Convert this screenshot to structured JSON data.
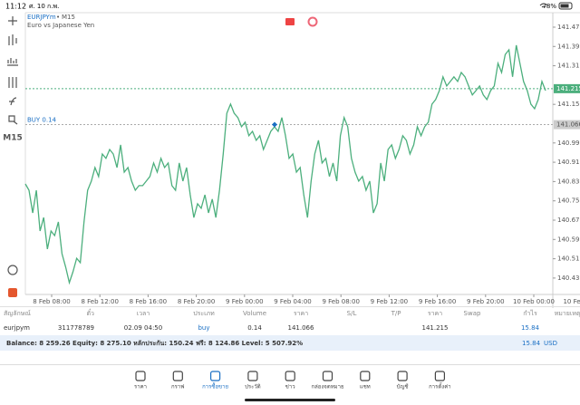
{
  "status_bar": {
    "time": "11:12",
    "date": "ศ. 10 ก.พ.",
    "battery": "78%"
  },
  "toolbar": {
    "timeframe": "M15"
  },
  "chart_data": {
    "type": "line",
    "title": "EURJPYm",
    "period": "M15",
    "subtitle": "Euro vs Japanese Yen",
    "series": [
      {
        "color": "#4caf7d",
        "values": [
          140.82,
          140.794,
          140.7,
          140.794,
          140.625,
          140.681,
          140.55,
          140.625,
          140.606,
          140.663,
          140.531,
          140.475,
          140.411,
          140.456,
          140.512,
          140.494,
          140.663,
          140.794,
          140.832,
          140.888,
          140.851,
          140.944,
          140.926,
          140.963,
          140.944,
          140.888,
          140.982,
          140.869,
          140.888,
          140.832,
          140.794,
          140.813,
          140.813,
          140.832,
          140.851,
          140.907,
          140.869,
          140.926,
          140.888,
          140.907,
          140.813,
          140.794,
          140.907,
          140.832,
          140.888,
          140.775,
          140.681,
          140.738,
          140.719,
          140.775,
          140.7,
          140.757,
          140.681,
          140.794,
          140.944,
          141.113,
          141.151,
          141.113,
          141.095,
          141.057,
          141.076,
          141.02,
          141.038,
          141.001,
          141.02,
          140.963,
          141.001,
          141.038,
          141.057,
          141.038,
          141.095,
          141.02,
          140.926,
          140.944,
          140.869,
          140.888,
          140.775,
          140.681,
          140.832,
          140.944,
          141.001,
          140.907,
          140.926,
          140.851,
          140.907,
          140.832,
          141.02,
          141.095,
          141.057,
          140.926,
          140.869,
          140.832,
          140.851,
          140.794,
          140.832,
          140.7,
          140.738,
          140.907,
          140.832,
          140.963,
          140.982,
          140.926,
          140.963,
          141.02,
          141.001,
          140.944,
          140.982,
          141.057,
          141.02,
          141.057,
          141.076,
          141.151,
          141.17,
          141.207,
          141.264,
          141.226,
          141.245,
          141.264,
          141.245,
          141.282,
          141.264,
          141.226,
          141.189,
          141.207,
          141.226,
          141.189,
          141.17,
          141.207,
          141.226,
          141.32,
          141.282,
          141.357,
          141.376,
          141.264,
          141.395,
          141.32,
          141.245,
          141.207,
          141.151,
          141.132,
          141.17,
          141.245,
          141.207
        ]
      }
    ],
    "ylim": [
      140.362,
      141.53
    ],
    "yticks": [
      {
        "value": 141.47,
        "label": "141.470"
      },
      {
        "value": 141.39,
        "label": "141.390"
      },
      {
        "value": 141.31,
        "label": "141.310"
      },
      {
        "value": 141.15,
        "label": "141.150"
      },
      {
        "value": 140.99,
        "label": "140.990"
      },
      {
        "value": 140.91,
        "label": "140.910"
      },
      {
        "value": 140.83,
        "label": "140.830"
      },
      {
        "value": 140.75,
        "label": "140.750"
      },
      {
        "value": 140.67,
        "label": "140.670"
      },
      {
        "value": 140.59,
        "label": "140.590"
      },
      {
        "value": 140.51,
        "label": "140.510"
      },
      {
        "value": 140.43,
        "label": "140.430"
      }
    ],
    "xlabels": [
      "8 Feb 08:00",
      "8 Feb 12:00",
      "8 Feb 16:00",
      "8 Feb 20:00",
      "9 Feb 00:00",
      "9 Feb 04:00",
      "9 Feb 08:00",
      "9 Feb 12:00",
      "9 Feb 16:00",
      "9 Feb 20:00",
      "10 Feb 00:00",
      "10 Feb 04:0"
    ],
    "current_price": 141.215,
    "order_line": {
      "label": "BUY 0.14",
      "price": 141.066
    }
  },
  "positions": {
    "columns": [
      "สัญลักษณ์",
      "ตั๋ว",
      "เวลา",
      "ประเภท",
      "Volume",
      "ราคา",
      "S/L",
      "T/P",
      "ราคา",
      "Swap",
      "กำไร",
      "หมายเหตุ"
    ],
    "rows": [
      [
        "eurjpym",
        "311778789",
        "02.09 04:50",
        "buy",
        "0.14",
        "141.066",
        null,
        null,
        "141.215",
        null,
        "15.84",
        null
      ]
    ]
  },
  "balance": {
    "text": "Balance: 8 259.26 Equity: 8 275.10 หลักประกัน: 150.24 ฟรี: 8 124.86 Level: 5 507.92%",
    "profit": "15.84",
    "currency": "USD"
  },
  "nav": {
    "items": [
      "ราคา",
      "กราฟ",
      "การซื้อขาย",
      "ประวัติ",
      "ข่าว",
      "กล่องจดหมาย",
      "แชท",
      "บัญชี",
      "การตั้งค่า"
    ],
    "active": 2
  }
}
